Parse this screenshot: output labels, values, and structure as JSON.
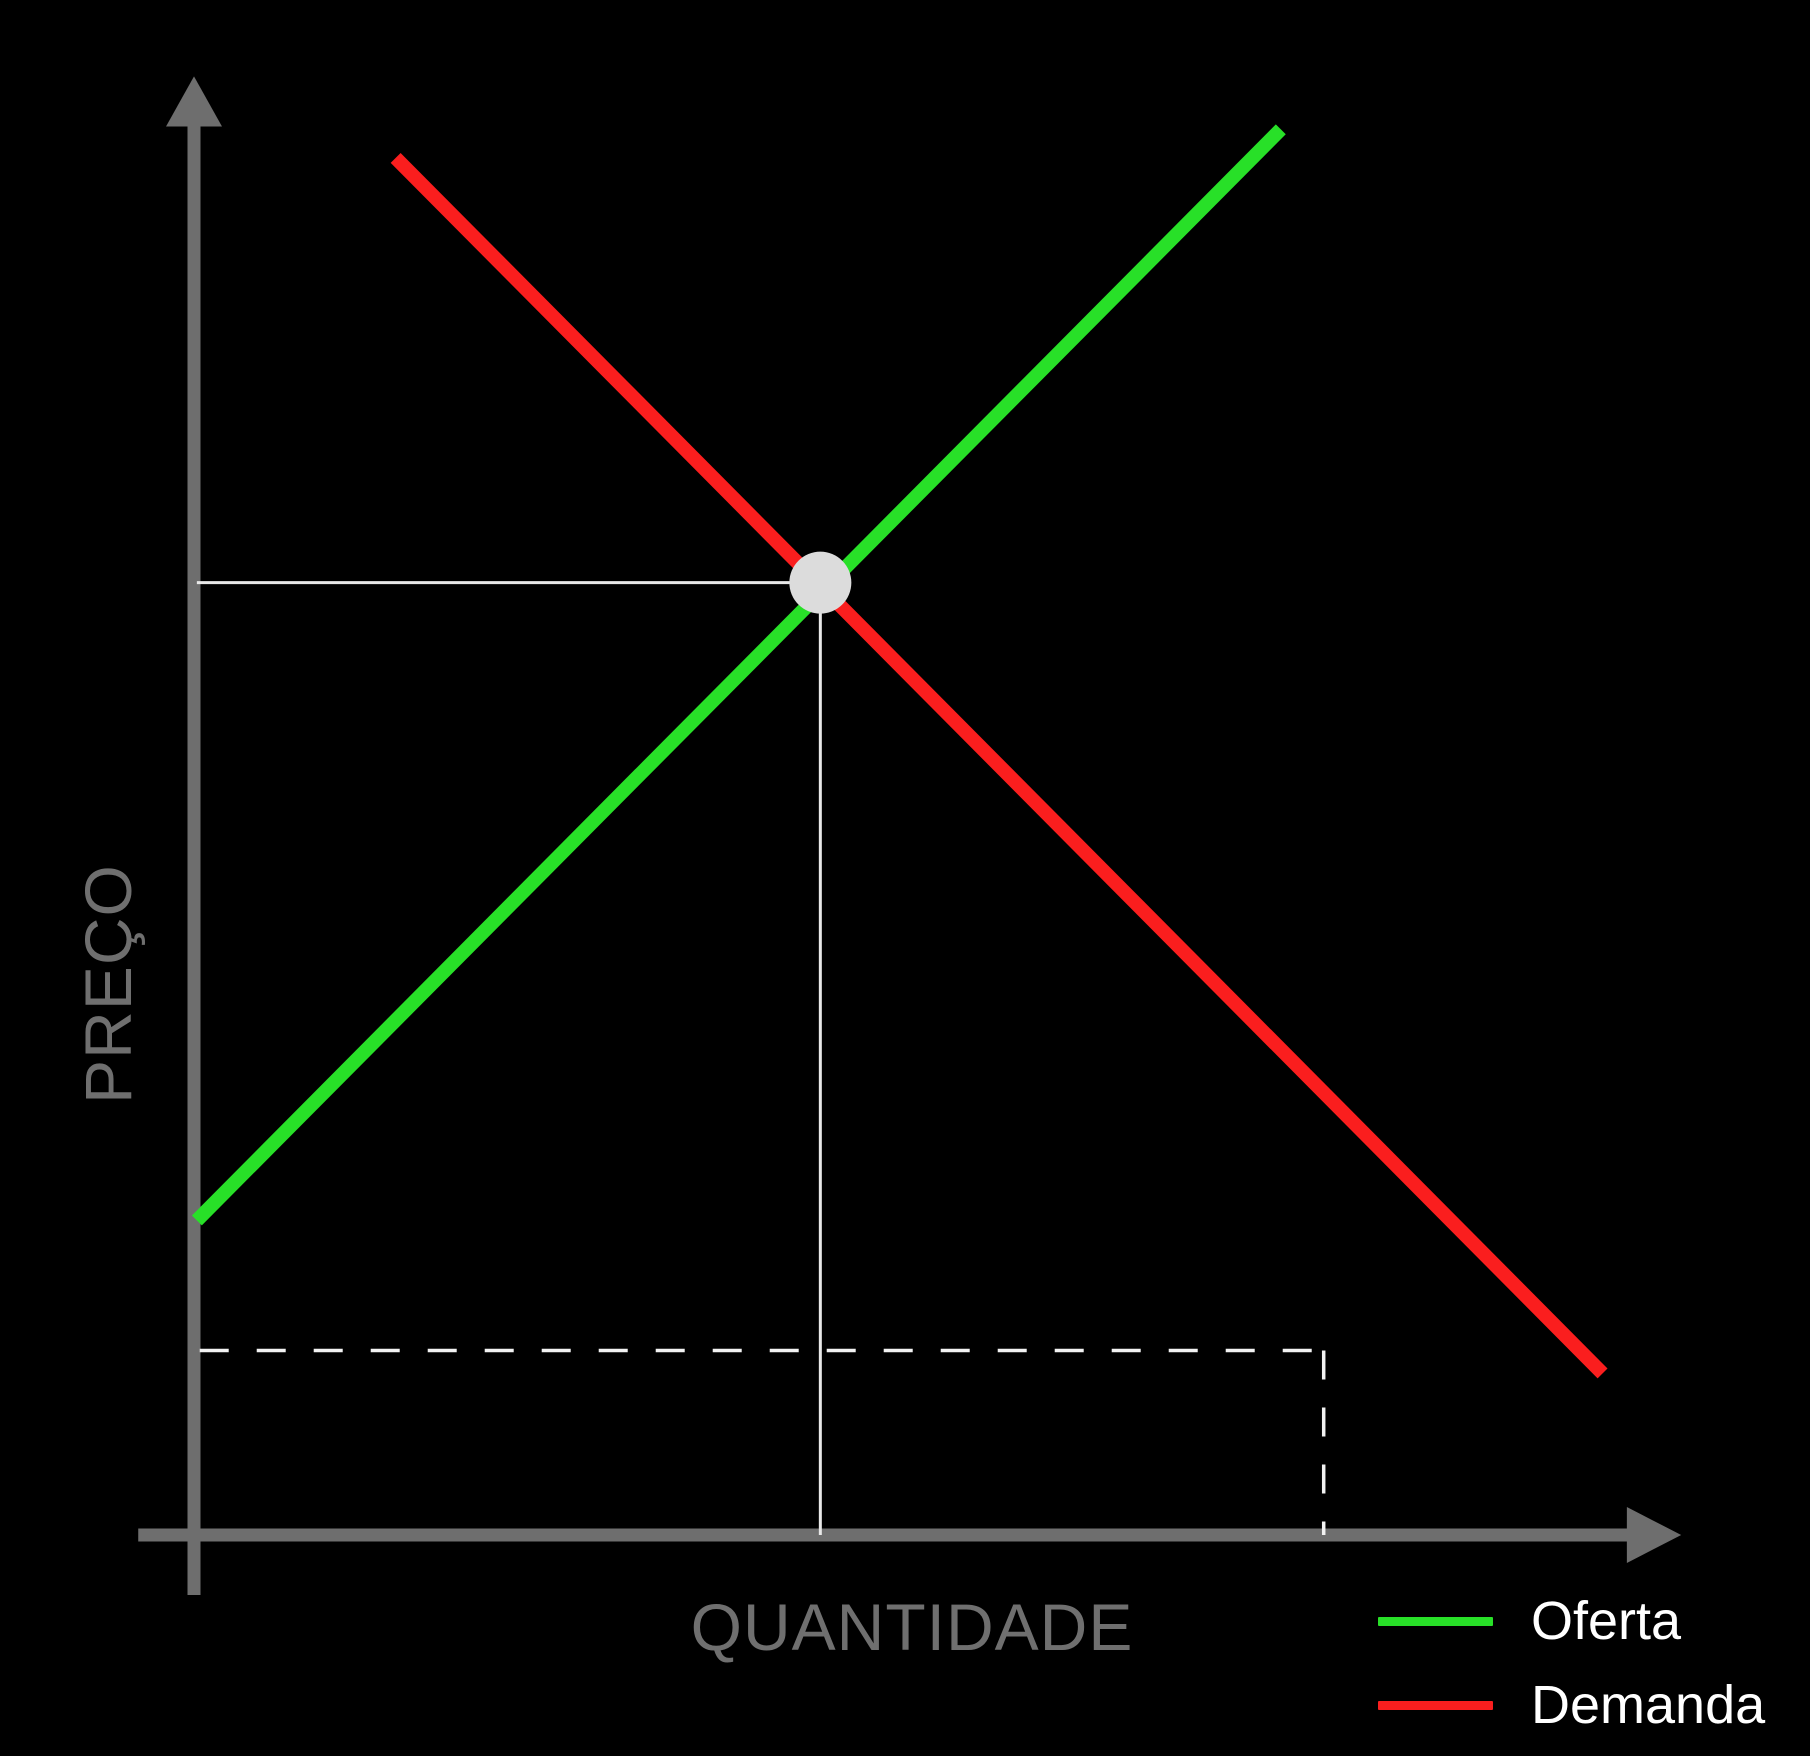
{
  "chart_data": {
    "type": "line",
    "title": "",
    "xlabel": "QUANTIDADE",
    "ylabel": "PREÇO",
    "x_range": [
      0,
      10.4
    ],
    "y_range": [
      0,
      10.2
    ],
    "axis_ticks": "none",
    "grid": false,
    "background_color": "#000000",
    "axis_color": "#6e6e6e",
    "label_color": "#6f6f6f",
    "legend_text_color": "#ffffff",
    "legend_position": "bottom-right",
    "series": [
      {
        "name": "Oferta",
        "color": "#28e028",
        "points": [
          [
            0.02,
            2.2
          ],
          [
            7.6,
            9.83
          ]
        ]
      },
      {
        "name": "Demanda",
        "color": "#fa1e1e",
        "points": [
          [
            1.41,
            9.63
          ],
          [
            9.85,
            1.13
          ]
        ]
      }
    ],
    "equilibrium_point": {
      "x": 4.38,
      "y": 6.66,
      "radius_px": 31,
      "color": "#dcdcdc"
    },
    "reference_lines": [
      {
        "name": "equilibrium-price-guide",
        "style": "solid",
        "color": "#e8e8e8",
        "from": [
          0.02,
          6.66
        ],
        "to": [
          4.38,
          6.66
        ]
      },
      {
        "name": "equilibrium-quantity-guide",
        "style": "solid",
        "color": "#e8e8e8",
        "from": [
          4.38,
          6.66
        ],
        "to": [
          4.38,
          0.0
        ]
      },
      {
        "name": "dashed-horizontal-guide",
        "style": "dashed",
        "color": "#f2f2f2",
        "from": [
          0.04,
          1.29
        ],
        "to": [
          7.9,
          1.29
        ]
      },
      {
        "name": "dashed-vertical-guide",
        "style": "dashed",
        "color": "#f2f2f2",
        "from": [
          7.9,
          1.29
        ],
        "to": [
          7.9,
          0.0
        ]
      }
    ],
    "legend": [
      {
        "label": "Oferta",
        "color": "#28e028"
      },
      {
        "label": "Demanda",
        "color": "#fa1e1e"
      }
    ]
  }
}
